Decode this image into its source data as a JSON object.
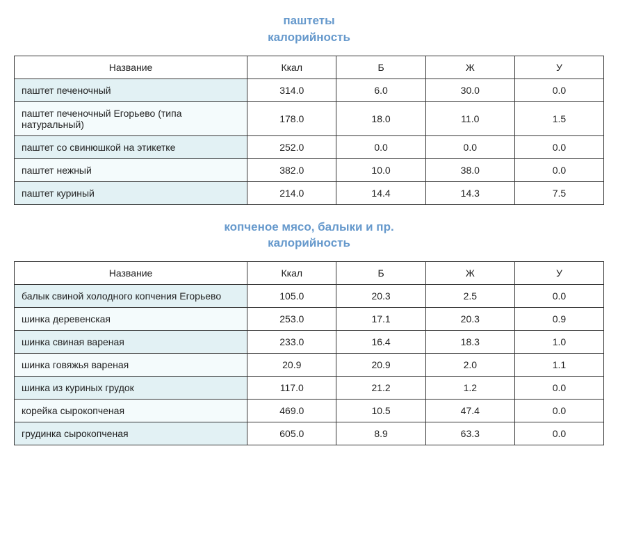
{
  "title_color": "#6699cc",
  "border_color": "#333333",
  "alt_row_bg": "#e2f1f4",
  "reg_row_bg": "#f4fbfc",
  "columns": {
    "name": "Название",
    "kcal": "Ккал",
    "protein": "Б",
    "fat": "Ж",
    "carb": "У"
  },
  "section1": {
    "title_line1": "паштеты",
    "title_line2": "калорийность",
    "rows": [
      {
        "name": "паштет печеночный",
        "kcal": "314.0",
        "protein": "6.0",
        "fat": "30.0",
        "carb": "0.0"
      },
      {
        "name": "паштет печеночный Егорьево (типа натуральный)",
        "kcal": "178.0",
        "protein": "18.0",
        "fat": "11.0",
        "carb": "1.5"
      },
      {
        "name": "паштет со свинюшкой на этикетке",
        "kcal": "252.0",
        "protein": "0.0",
        "fat": "0.0",
        "carb": "0.0"
      },
      {
        "name": "паштет нежный",
        "kcal": "382.0",
        "protein": "10.0",
        "fat": "38.0",
        "carb": "0.0"
      },
      {
        "name": "паштет куриный",
        "kcal": "214.0",
        "protein": "14.4",
        "fat": "14.3",
        "carb": "7.5"
      }
    ]
  },
  "section2": {
    "title_line1": "копченое мясо, балыки и пр.",
    "title_line2": "калорийность",
    "rows": [
      {
        "name": "балык свиной холодного копчения Егорьево",
        "kcal": "105.0",
        "protein": "20.3",
        "fat": "2.5",
        "carb": "0.0"
      },
      {
        "name": "шинка деревенская",
        "kcal": "253.0",
        "protein": "17.1",
        "fat": "20.3",
        "carb": "0.9"
      },
      {
        "name": "шинка свиная вареная",
        "kcal": "233.0",
        "protein": "16.4",
        "fat": "18.3",
        "carb": "1.0"
      },
      {
        "name": "шинка говяжья вареная",
        "kcal": "20.9",
        "protein": "20.9",
        "fat": "2.0",
        "carb": "1.1"
      },
      {
        "name": "шинка из куриных грудок",
        "kcal": "117.0",
        "protein": "21.2",
        "fat": "1.2",
        "carb": "0.0"
      },
      {
        "name": "корейка сырокопченая",
        "kcal": "469.0",
        "protein": "10.5",
        "fat": "47.4",
        "carb": "0.0"
      },
      {
        "name": "грудинка сырокопченая",
        "kcal": "605.0",
        "protein": "8.9",
        "fat": "63.3",
        "carb": "0.0"
      }
    ]
  }
}
